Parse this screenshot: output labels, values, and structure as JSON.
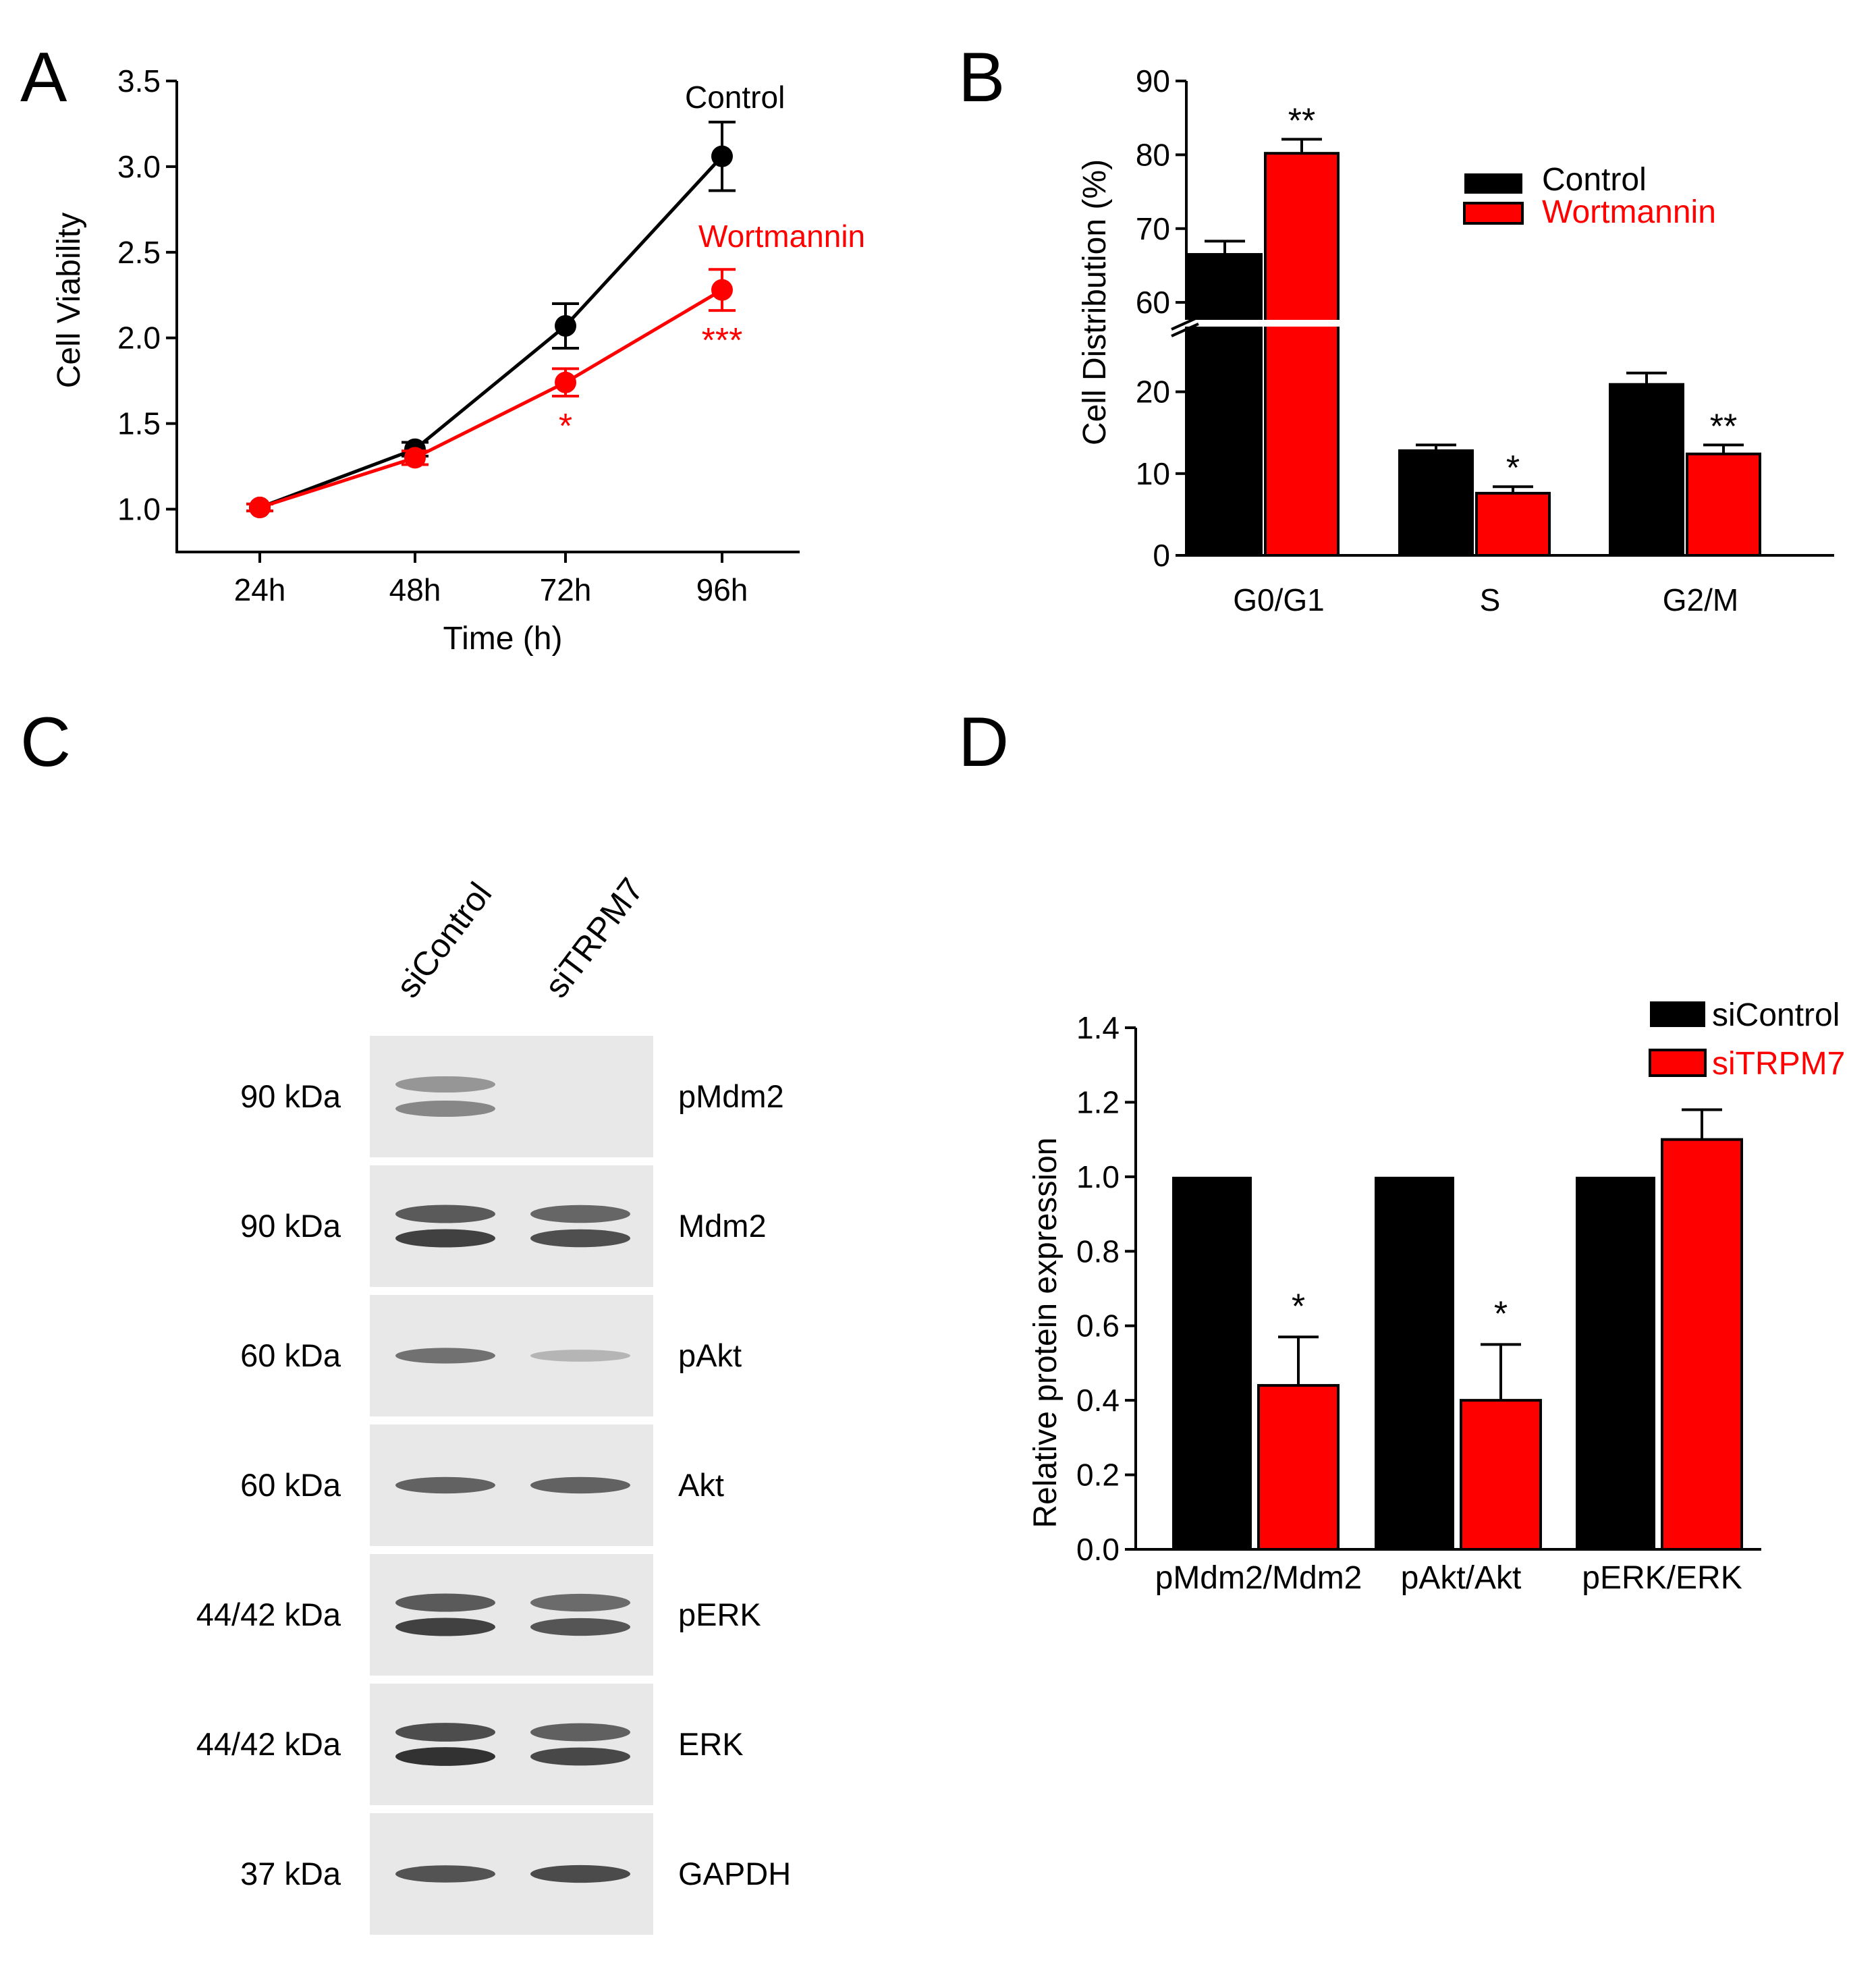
{
  "colors": {
    "control": "#000000",
    "treated": "#ff0000",
    "blot_bg": "#e8e8e8",
    "band": "#2b2b2b"
  },
  "chart_data": [
    {
      "panel": "A",
      "type": "line",
      "xlabel": "Time (h)",
      "ylabel": "Cell Viability",
      "categories": [
        "24h",
        "48h",
        "72h",
        "96h"
      ],
      "ylim": [
        0.75,
        3.5
      ],
      "yticks": [
        "1.0",
        "1.5",
        "2.0",
        "2.5",
        "3.0",
        "3.5"
      ],
      "yticks_values": [
        1.0,
        1.5,
        2.0,
        2.5,
        3.0,
        3.5
      ],
      "series": [
        {
          "name": "Control",
          "color": "#000000",
          "values": [
            1.01,
            1.35,
            2.07,
            3.06
          ],
          "errors": [
            0.02,
            0.04,
            0.13,
            0.2
          ],
          "markers": [
            "",
            "",
            "",
            ""
          ]
        },
        {
          "name": "Wortmannin",
          "color": "#ff0000",
          "values": [
            1.01,
            1.3,
            1.74,
            2.28
          ],
          "errors": [
            0.02,
            0.04,
            0.08,
            0.12
          ],
          "markers": [
            "",
            "",
            "*",
            "***"
          ]
        }
      ]
    },
    {
      "panel": "B",
      "type": "bar",
      "ylabel": "Cell Distribution (%)",
      "categories": [
        "G0/G1",
        "S",
        "G2/M"
      ],
      "axis_break": [
        25,
        58
      ],
      "yticks_lower": [
        "0",
        "10",
        "20"
      ],
      "yticks_lower_values": [
        0,
        10,
        20
      ],
      "yticks_upper": [
        "60",
        "70",
        "80",
        "90"
      ],
      "yticks_upper_values": [
        60,
        70,
        80,
        90
      ],
      "series": [
        {
          "name": "Control",
          "color": "#000000",
          "values": [
            66.5,
            12.8,
            20.9
          ],
          "errors": [
            1.8,
            0.7,
            1.4
          ],
          "markers": [
            "",
            "",
            ""
          ]
        },
        {
          "name": "Wortmannin",
          "color": "#ff0000",
          "values": [
            80.2,
            7.6,
            12.4
          ],
          "errors": [
            1.9,
            0.8,
            1.1
          ],
          "markers": [
            "**",
            "*",
            "**"
          ]
        }
      ]
    },
    {
      "panel": "D",
      "type": "bar",
      "ylabel": "Relative protein expression",
      "categories": [
        "pMdm2/Mdm2",
        "pAkt/Akt",
        "pERK/ERK"
      ],
      "ylim": [
        0.0,
        1.4
      ],
      "yticks": [
        "0.0",
        "0.2",
        "0.4",
        "0.6",
        "0.8",
        "1.0",
        "1.2",
        "1.4"
      ],
      "yticks_values": [
        0.0,
        0.2,
        0.4,
        0.6,
        0.8,
        1.0,
        1.2,
        1.4
      ],
      "series": [
        {
          "name": "siControl",
          "color": "#000000",
          "values": [
            1.0,
            1.0,
            1.0
          ],
          "errors": [
            0,
            0,
            0
          ],
          "markers": [
            "",
            "",
            ""
          ]
        },
        {
          "name": "siTRPM7",
          "color": "#ff0000",
          "values": [
            0.44,
            0.4,
            1.1
          ],
          "errors": [
            0.13,
            0.15,
            0.08
          ],
          "markers": [
            "*",
            "*",
            ""
          ]
        }
      ]
    }
  ],
  "panel_c": {
    "letter": "C",
    "lanes": [
      "siControl",
      "siTRPM7"
    ],
    "rows": [
      {
        "protein": "pMdm2",
        "mw": "90 kDa",
        "band_intensity": [
          0.35,
          0.0
        ]
      },
      {
        "protein": "Mdm2",
        "mw": "90 kDa",
        "band_intensity": [
          0.85,
          0.75
        ]
      },
      {
        "protein": "pAkt",
        "mw": "60 kDa",
        "band_intensity": [
          0.6,
          0.15
        ]
      },
      {
        "protein": "Akt",
        "mw": "60 kDa",
        "band_intensity": [
          0.7,
          0.7
        ]
      },
      {
        "protein": "pERK",
        "mw": "44/42 kDa",
        "band_intensity": [
          0.85,
          0.7
        ]
      },
      {
        "protein": "ERK",
        "mw": "44/42 kDa",
        "band_intensity": [
          0.95,
          0.8
        ]
      },
      {
        "protein": "GAPDH",
        "mw": "37 kDa",
        "band_intensity": [
          0.8,
          0.85
        ]
      }
    ]
  },
  "labels": {
    "a": "A",
    "b": "B",
    "c": "C",
    "d": "D"
  }
}
